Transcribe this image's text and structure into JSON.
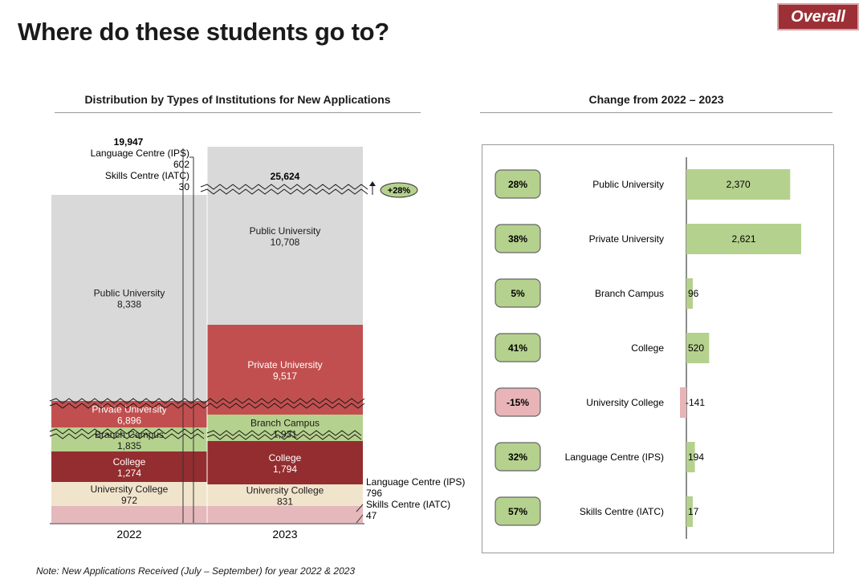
{
  "header": {
    "title": "Where do these students go to?",
    "badge": "Overall"
  },
  "left_title": "Distribution by Types of Institutions for New Applications",
  "right_title": "Change from 2022 – 2023",
  "note": "Note: New Applications Received (July – September) for year 2022 & 2023",
  "colors": {
    "Public University": "#d9d9d9",
    "Private University": "#c24f4f",
    "Branch Campus": "#b5d18e",
    "College": "#932d2f",
    "University College": "#f1e4cc",
    "Language Centre (IPS)": "#e5b8bb",
    "Skills Centre (IATC)": "#e5b8bb",
    "positive": "#b5d18e",
    "negative": "#e8b4b8"
  },
  "chart_data": [
    {
      "type": "bar",
      "stacked": true,
      "title": "Distribution by Types of Institutions for New Applications",
      "categories": [
        "2022",
        "2023"
      ],
      "totals": [
        "19,947",
        "25,624"
      ],
      "growth_label": "+28%",
      "series": [
        {
          "name": "Public University",
          "values": [
            8338,
            10708
          ],
          "labels": [
            "8,338",
            "10,708"
          ]
        },
        {
          "name": "Private University",
          "values": [
            6896,
            9517
          ],
          "labels": [
            "6,896",
            "9,517"
          ]
        },
        {
          "name": "Branch Campus",
          "values": [
            1835,
            1931
          ],
          "labels": [
            "1,835",
            "1,931"
          ]
        },
        {
          "name": "College",
          "values": [
            1274,
            1794
          ],
          "labels": [
            "1,274",
            "1,794"
          ]
        },
        {
          "name": "University College",
          "values": [
            972,
            831
          ],
          "labels": [
            "972",
            "831"
          ]
        },
        {
          "name": "Language Centre (IPS)",
          "values": [
            602,
            796
          ],
          "labels": [
            "602",
            "796"
          ]
        },
        {
          "name": "Skills Centre (IATC)",
          "values": [
            30,
            47
          ],
          "labels": [
            "30",
            "47"
          ]
        }
      ]
    },
    {
      "type": "bar",
      "orientation": "horizontal",
      "title": "Change from 2022 – 2023",
      "categories": [
        "Public University",
        "Private University",
        "Branch Campus",
        "College",
        "University College",
        "Language Centre (IPS)",
        "Skills Centre (IATC)"
      ],
      "values": [
        2370,
        2621,
        96,
        520,
        -141,
        194,
        17
      ],
      "labels": [
        "2,370",
        "2,621",
        "96",
        "520",
        "-141",
        "194",
        "17"
      ],
      "pct_change": [
        "28%",
        "38%",
        "5%",
        "41%",
        "-15%",
        "32%",
        "57%"
      ]
    }
  ]
}
